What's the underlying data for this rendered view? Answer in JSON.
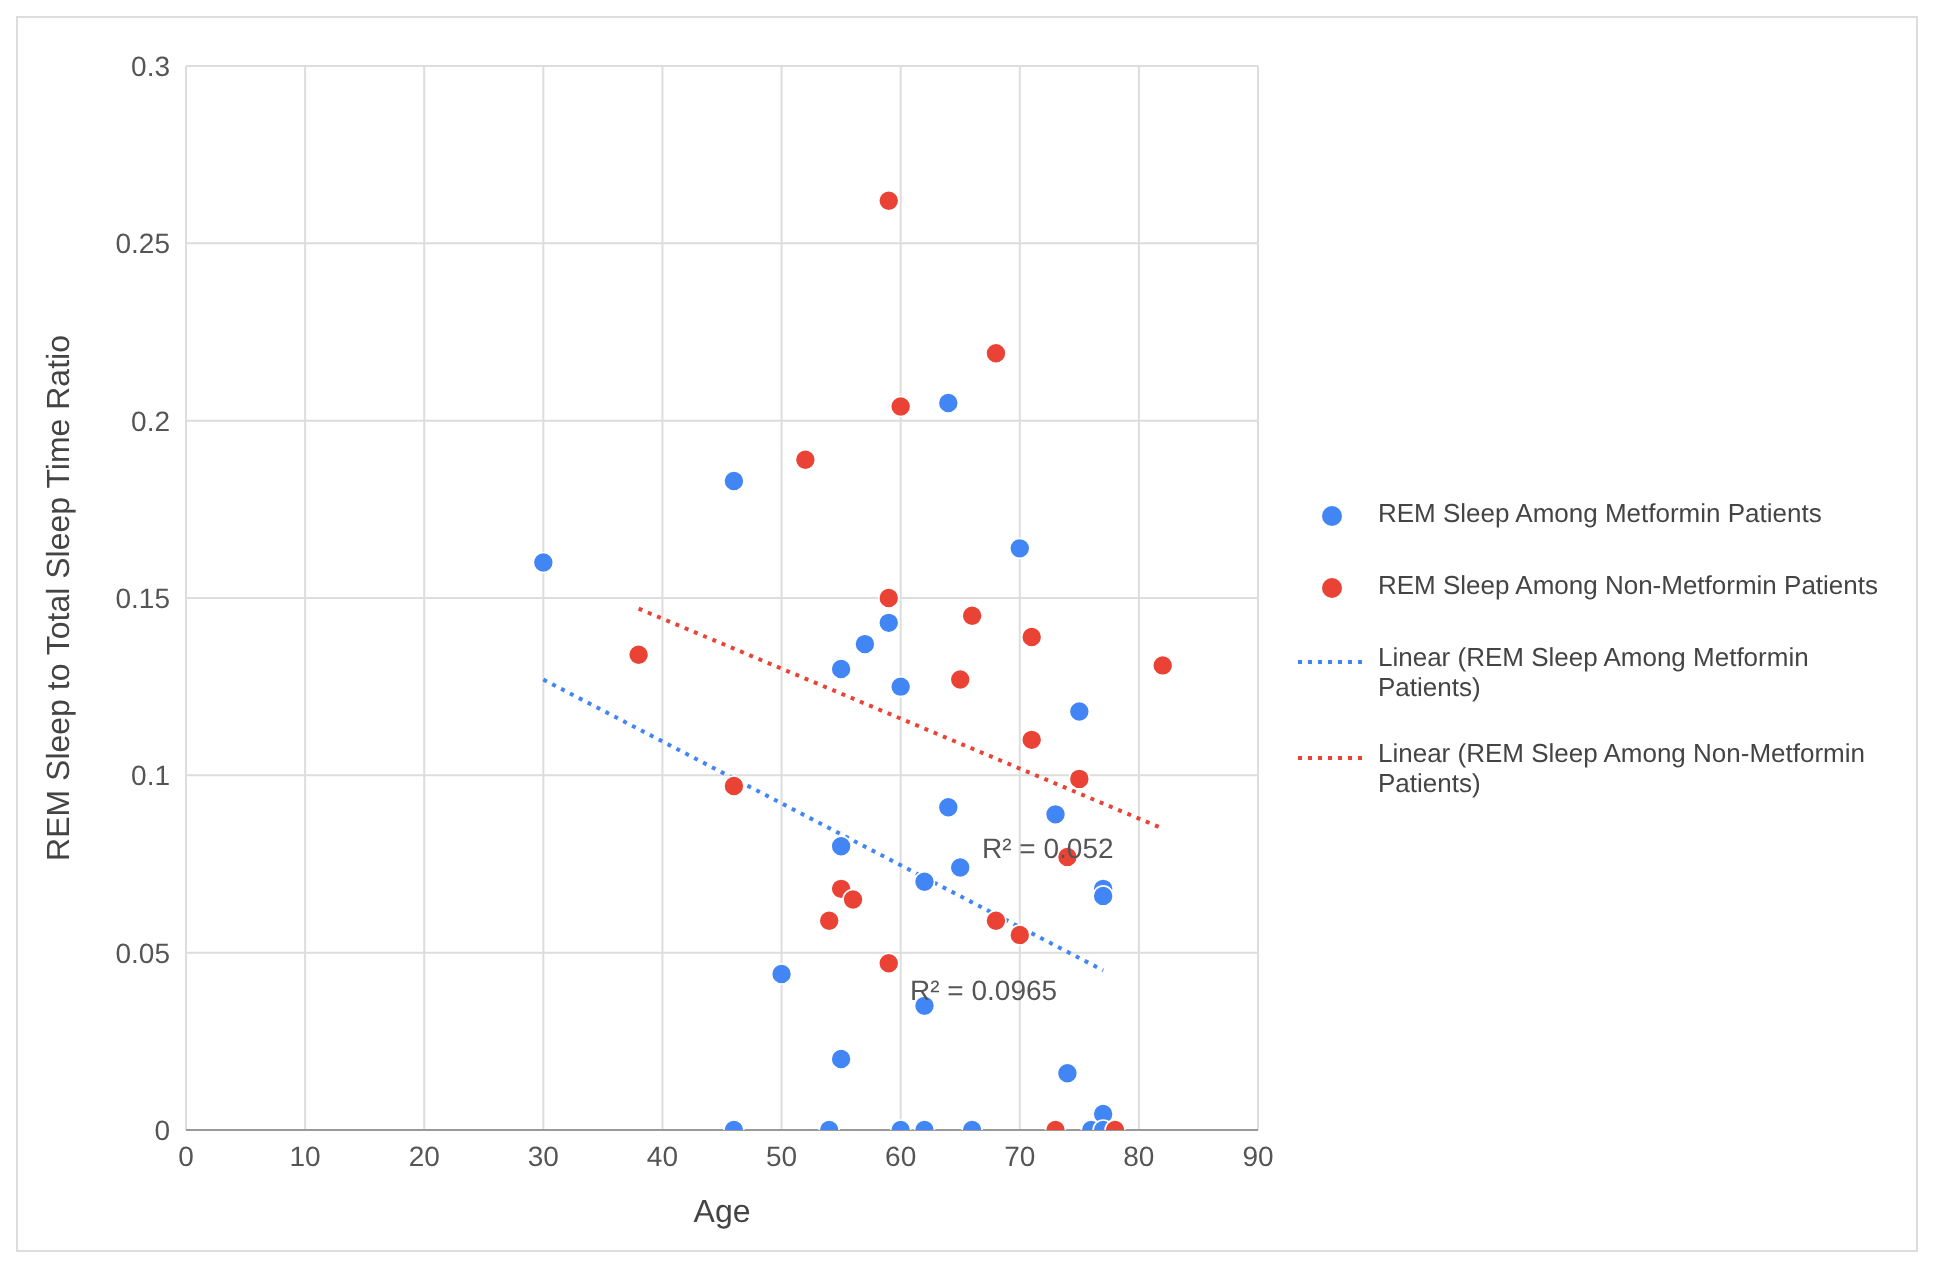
{
  "chart_data": {
    "type": "scatter",
    "xlabel": "Age",
    "ylabel": "REM Sleep to Total Sleep Time  Ratio",
    "xlim": [
      0,
      90
    ],
    "xticks": [
      0,
      10,
      20,
      30,
      40,
      50,
      60,
      70,
      80,
      90
    ],
    "ylim": [
      0,
      0.3
    ],
    "yticks": [
      0,
      0.05,
      0.1,
      0.15,
      0.2,
      0.25,
      0.3
    ],
    "grid": true,
    "legend": "right",
    "series": [
      {
        "name": "REM Sleep Among Metformin Patients",
        "marker": "circle",
        "color": "#4285f4",
        "x": [
          30,
          46,
          64,
          70,
          59,
          57,
          55,
          60,
          75,
          64,
          73,
          65,
          55,
          62,
          77,
          77,
          50,
          62,
          55,
          74,
          77,
          46,
          54,
          60,
          62,
          66,
          76,
          77
        ],
        "values": [
          0.16,
          0.183,
          0.205,
          0.164,
          0.143,
          0.137,
          0.13,
          0.125,
          0.118,
          0.091,
          0.089,
          0.074,
          0.08,
          0.07,
          0.068,
          0.066,
          0.044,
          0.035,
          0.02,
          0.016,
          0.0045,
          0,
          0,
          0,
          0,
          0,
          0,
          0
        ]
      },
      {
        "name": "REM Sleep Among Non-Metformin Patients",
        "marker": "circle",
        "color": "#ea4335",
        "x": [
          59,
          68,
          60,
          52,
          59,
          66,
          71,
          82,
          38,
          65,
          71,
          75,
          46,
          74,
          55,
          56,
          54,
          68,
          70,
          59,
          73,
          78
        ],
        "values": [
          0.262,
          0.219,
          0.204,
          0.189,
          0.15,
          0.145,
          0.139,
          0.131,
          0.134,
          0.127,
          0.11,
          0.099,
          0.097,
          0.077,
          0.068,
          0.065,
          0.059,
          0.059,
          0.055,
          0.047,
          0,
          0
        ]
      },
      {
        "name": "Linear (REM Sleep Among Metformin Patients)",
        "type": "line",
        "marker": "none",
        "line_style": "dotted",
        "color": "#4285f4",
        "x": [
          30,
          77
        ],
        "values": [
          0.127,
          0.045
        ]
      },
      {
        "name": "Linear (REM Sleep Among Non-Metformin Patients)",
        "type": "line",
        "marker": "none",
        "line_style": "dotted",
        "color": "#ea4335",
        "x": [
          38,
          82
        ],
        "values": [
          0.147,
          0.085
        ]
      }
    ],
    "annotations": [
      "R² = 0.052",
      "R² = 0.0965"
    ]
  }
}
